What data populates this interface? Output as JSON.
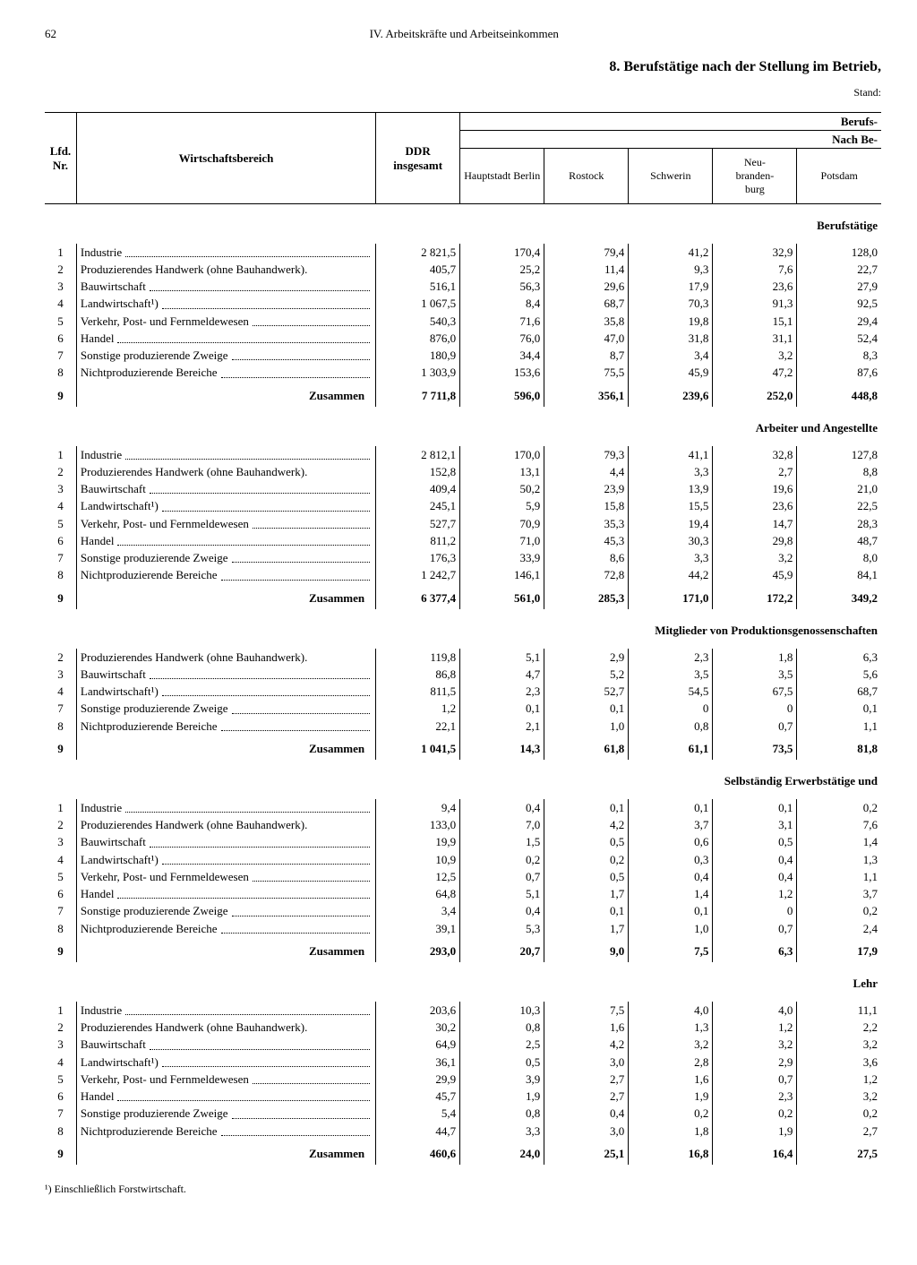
{
  "page_number": "62",
  "chapter": "IV. Arbeitskräfte und Arbeitseinkommen",
  "section_title": "8. Berufstätige nach der Stellung im Betrieb,",
  "stand": "Stand:",
  "super1": "Berufs-",
  "super2": "Nach Be-",
  "headers": {
    "nr": "Lfd.\nNr.",
    "bereich": "Wirtschaftsbereich",
    "ddr": "DDR insgesamt",
    "c1": "Hauptstadt Berlin",
    "c2": "Rostock",
    "c3": "Schwerin",
    "c4": "Neu-\nbranden-\nburg",
    "c5": "Potsdam"
  },
  "row_labels": {
    "1": "Industrie",
    "2": "Produzierendes Handwerk (ohne Bauhandwerk).",
    "3": "Bauwirtschaft",
    "4": "Landwirtschaft¹)",
    "5": "Verkehr, Post- und Fernmeldewesen",
    "6": "Handel",
    "7": "Sonstige produzierende Zweige",
    "8": "Nichtproduzierende Bereiche",
    "9": "Zusammen"
  },
  "sections": [
    {
      "title": "Berufstätige",
      "rows": [
        {
          "nr": "1",
          "v": [
            "2 821,5",
            "170,4",
            "79,4",
            "41,2",
            "32,9",
            "128,0"
          ]
        },
        {
          "nr": "2",
          "v": [
            "405,7",
            "25,2",
            "11,4",
            "9,3",
            "7,6",
            "22,7"
          ]
        },
        {
          "nr": "3",
          "v": [
            "516,1",
            "56,3",
            "29,6",
            "17,9",
            "23,6",
            "27,9"
          ]
        },
        {
          "nr": "4",
          "v": [
            "1 067,5",
            "8,4",
            "68,7",
            "70,3",
            "91,3",
            "92,5"
          ]
        },
        {
          "nr": "5",
          "v": [
            "540,3",
            "71,6",
            "35,8",
            "19,8",
            "15,1",
            "29,4"
          ]
        },
        {
          "nr": "6",
          "v": [
            "876,0",
            "76,0",
            "47,0",
            "31,8",
            "31,1",
            "52,4"
          ]
        },
        {
          "nr": "7",
          "v": [
            "180,9",
            "34,4",
            "8,7",
            "3,4",
            "3,2",
            "8,3"
          ]
        },
        {
          "nr": "8",
          "v": [
            "1 303,9",
            "153,6",
            "75,5",
            "45,9",
            "47,2",
            "87,6"
          ]
        }
      ],
      "sum": {
        "nr": "9",
        "v": [
          "7 711,8",
          "596,0",
          "356,1",
          "239,6",
          "252,0",
          "448,8"
        ]
      }
    },
    {
      "title": "Arbeiter und Angestellte",
      "rows": [
        {
          "nr": "1",
          "v": [
            "2 812,1",
            "170,0",
            "79,3",
            "41,1",
            "32,8",
            "127,8"
          ]
        },
        {
          "nr": "2",
          "v": [
            "152,8",
            "13,1",
            "4,4",
            "3,3",
            "2,7",
            "8,8"
          ]
        },
        {
          "nr": "3",
          "v": [
            "409,4",
            "50,2",
            "23,9",
            "13,9",
            "19,6",
            "21,0"
          ]
        },
        {
          "nr": "4",
          "v": [
            "245,1",
            "5,9",
            "15,8",
            "15,5",
            "23,6",
            "22,5"
          ]
        },
        {
          "nr": "5",
          "v": [
            "527,7",
            "70,9",
            "35,3",
            "19,4",
            "14,7",
            "28,3"
          ]
        },
        {
          "nr": "6",
          "v": [
            "811,2",
            "71,0",
            "45,3",
            "30,3",
            "29,8",
            "48,7"
          ]
        },
        {
          "nr": "7",
          "v": [
            "176,3",
            "33,9",
            "8,6",
            "3,3",
            "3,2",
            "8,0"
          ]
        },
        {
          "nr": "8",
          "v": [
            "1 242,7",
            "146,1",
            "72,8",
            "44,2",
            "45,9",
            "84,1"
          ]
        }
      ],
      "sum": {
        "nr": "9",
        "v": [
          "6 377,4",
          "561,0",
          "285,3",
          "171,0",
          "172,2",
          "349,2"
        ]
      }
    },
    {
      "title": "Mitglieder von Produktionsgenossenschaften",
      "rows": [
        {
          "nr": "2",
          "v": [
            "119,8",
            "5,1",
            "2,9",
            "2,3",
            "1,8",
            "6,3"
          ]
        },
        {
          "nr": "3",
          "v": [
            "86,8",
            "4,7",
            "5,2",
            "3,5",
            "3,5",
            "5,6"
          ]
        },
        {
          "nr": "4",
          "v": [
            "811,5",
            "2,3",
            "52,7",
            "54,5",
            "67,5",
            "68,7"
          ]
        },
        {
          "nr": "7",
          "v": [
            "1,2",
            "0,1",
            "0,1",
            "0",
            "0",
            "0,1"
          ]
        },
        {
          "nr": "8",
          "v": [
            "22,1",
            "2,1",
            "1,0",
            "0,8",
            "0,7",
            "1,1"
          ]
        }
      ],
      "sum": {
        "nr": "9",
        "v": [
          "1 041,5",
          "14,3",
          "61,8",
          "61,1",
          "73,5",
          "81,8"
        ]
      }
    },
    {
      "title": "Selbständig Erwerbstätige und",
      "rows": [
        {
          "nr": "1",
          "v": [
            "9,4",
            "0,4",
            "0,1",
            "0,1",
            "0,1",
            "0,2"
          ]
        },
        {
          "nr": "2",
          "v": [
            "133,0",
            "7,0",
            "4,2",
            "3,7",
            "3,1",
            "7,6"
          ]
        },
        {
          "nr": "3",
          "v": [
            "19,9",
            "1,5",
            "0,5",
            "0,6",
            "0,5",
            "1,4"
          ]
        },
        {
          "nr": "4",
          "v": [
            "10,9",
            "0,2",
            "0,2",
            "0,3",
            "0,4",
            "1,3"
          ]
        },
        {
          "nr": "5",
          "v": [
            "12,5",
            "0,7",
            "0,5",
            "0,4",
            "0,4",
            "1,1"
          ]
        },
        {
          "nr": "6",
          "v": [
            "64,8",
            "5,1",
            "1,7",
            "1,4",
            "1,2",
            "3,7"
          ]
        },
        {
          "nr": "7",
          "v": [
            "3,4",
            "0,4",
            "0,1",
            "0,1",
            "0",
            "0,2"
          ]
        },
        {
          "nr": "8",
          "v": [
            "39,1",
            "5,3",
            "1,7",
            "1,0",
            "0,7",
            "2,4"
          ]
        }
      ],
      "sum": {
        "nr": "9",
        "v": [
          "293,0",
          "20,7",
          "9,0",
          "7,5",
          "6,3",
          "17,9"
        ]
      }
    },
    {
      "title": "Lehr",
      "rows": [
        {
          "nr": "1",
          "v": [
            "203,6",
            "10,3",
            "7,5",
            "4,0",
            "4,0",
            "11,1"
          ]
        },
        {
          "nr": "2",
          "v": [
            "30,2",
            "0,8",
            "1,6",
            "1,3",
            "1,2",
            "2,2"
          ]
        },
        {
          "nr": "3",
          "v": [
            "64,9",
            "2,5",
            "4,2",
            "3,2",
            "3,2",
            "3,2"
          ]
        },
        {
          "nr": "4",
          "v": [
            "36,1",
            "0,5",
            "3,0",
            "2,8",
            "2,9",
            "3,6"
          ]
        },
        {
          "nr": "5",
          "v": [
            "29,9",
            "3,9",
            "2,7",
            "1,6",
            "0,7",
            "1,2"
          ]
        },
        {
          "nr": "6",
          "v": [
            "45,7",
            "1,9",
            "2,7",
            "1,9",
            "2,3",
            "3,2"
          ]
        },
        {
          "nr": "7",
          "v": [
            "5,4",
            "0,8",
            "0,4",
            "0,2",
            "0,2",
            "0,2"
          ]
        },
        {
          "nr": "8",
          "v": [
            "44,7",
            "3,3",
            "3,0",
            "1,8",
            "1,9",
            "2,7"
          ]
        }
      ],
      "sum": {
        "nr": "9",
        "v": [
          "460,6",
          "24,0",
          "25,1",
          "16,8",
          "16,4",
          "27,5"
        ]
      }
    }
  ],
  "footnote": "¹) Einschließlich Forstwirtschaft."
}
